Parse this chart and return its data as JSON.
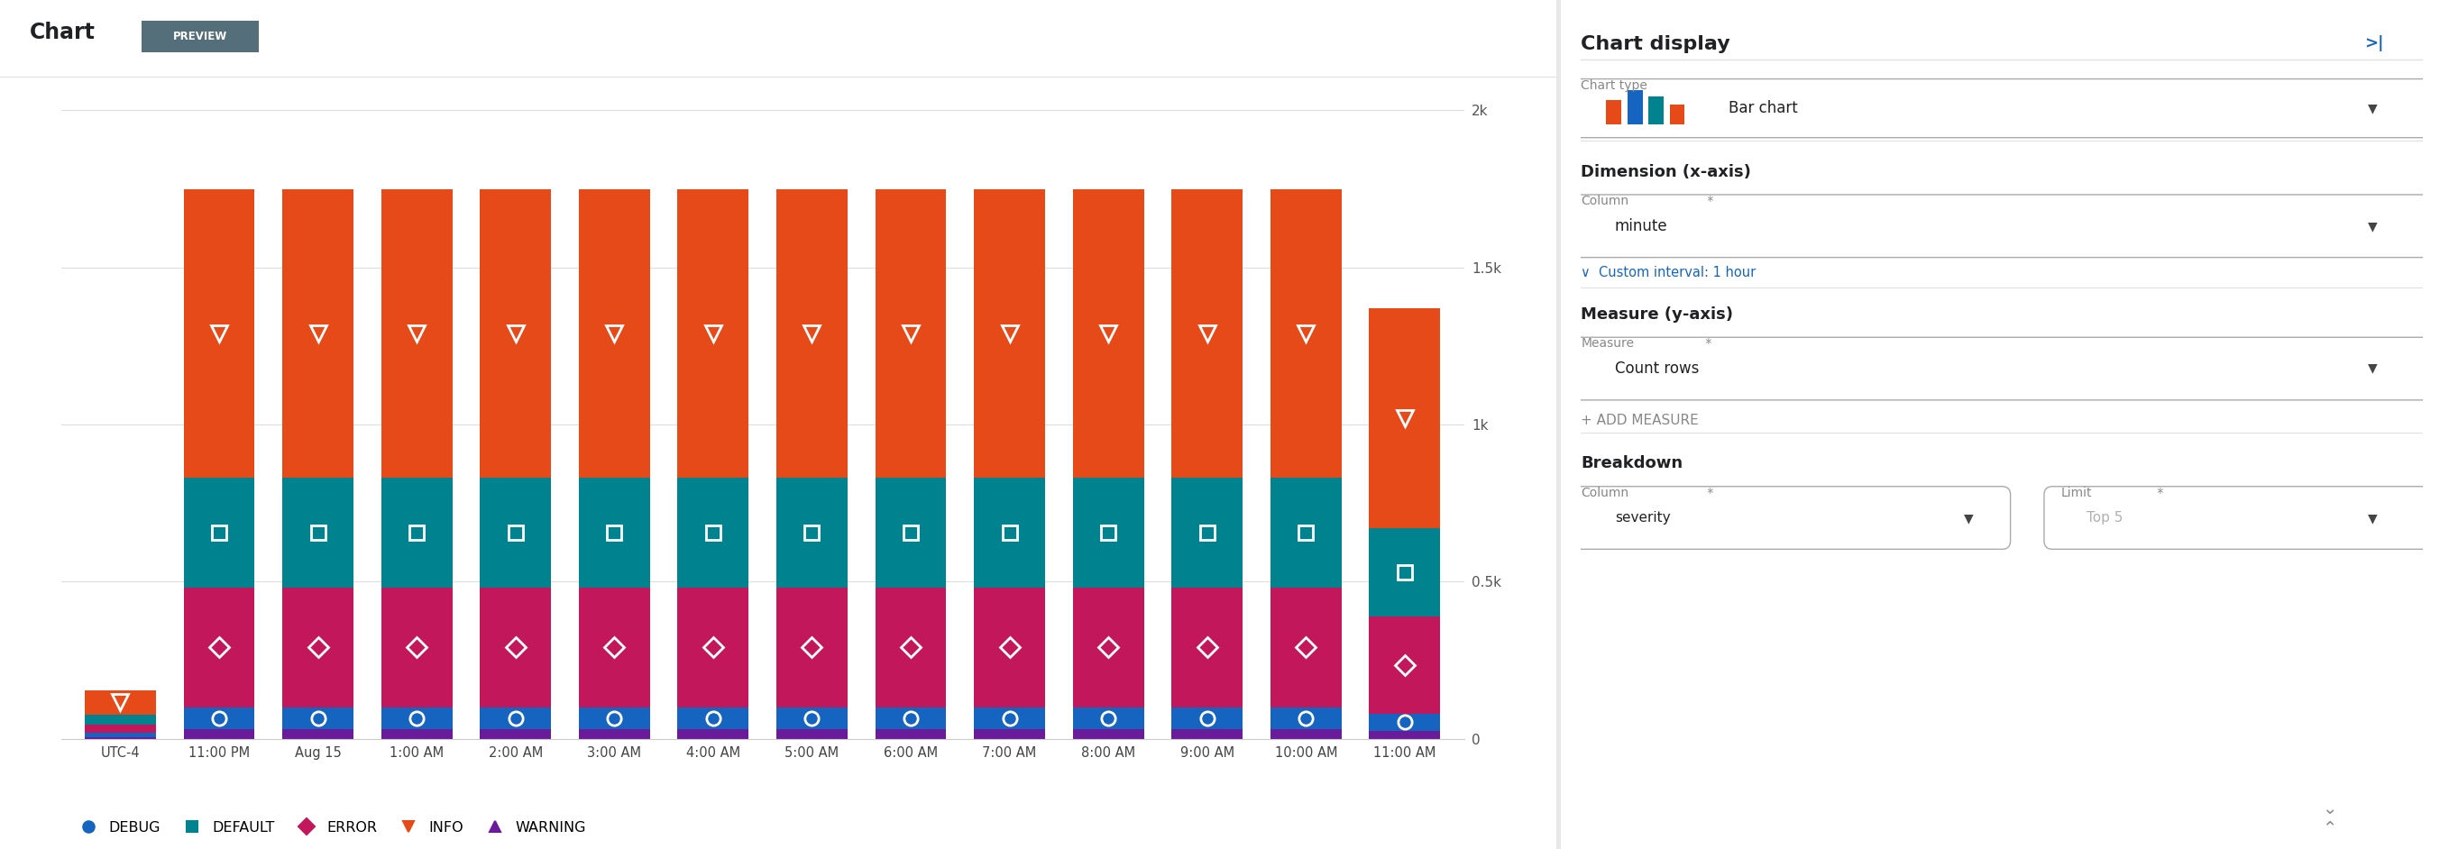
{
  "categories": [
    "UTC-4",
    "11:00 PM",
    "Aug 15",
    "1:00 AM",
    "2:00 AM",
    "3:00 AM",
    "4:00 AM",
    "5:00 AM",
    "6:00 AM",
    "7:00 AM",
    "8:00 AM",
    "9:00 AM",
    "10:00 AM",
    "11:00 AM"
  ],
  "series": {
    "WARNING": [
      5,
      30,
      30,
      30,
      30,
      30,
      30,
      30,
      30,
      30,
      30,
      30,
      30,
      25
    ],
    "DEBUG": [
      15,
      70,
      70,
      70,
      70,
      70,
      70,
      70,
      70,
      70,
      70,
      70,
      70,
      55
    ],
    "ERROR": [
      25,
      380,
      380,
      380,
      380,
      380,
      380,
      380,
      380,
      380,
      380,
      380,
      380,
      310
    ],
    "DEFAULT": [
      30,
      350,
      350,
      350,
      350,
      350,
      350,
      350,
      350,
      350,
      350,
      350,
      350,
      280
    ],
    "INFO": [
      80,
      920,
      920,
      920,
      920,
      920,
      920,
      920,
      920,
      920,
      920,
      920,
      920,
      700
    ]
  },
  "series_order": [
    "WARNING",
    "DEBUG",
    "ERROR",
    "DEFAULT",
    "INFO"
  ],
  "legend_order": [
    "DEBUG",
    "DEFAULT",
    "ERROR",
    "INFO",
    "WARNING"
  ],
  "colors": {
    "DEBUG": "#1565C0",
    "DEFAULT": "#00838F",
    "ERROR": "#C2185B",
    "INFO": "#E64A19",
    "WARNING": "#6A1B9A"
  },
  "markers": {
    "DEBUG": "o",
    "DEFAULT": "s",
    "ERROR": "D",
    "INFO": "v",
    "WARNING": "^"
  },
  "ylim": [
    0,
    2000
  ],
  "yticks": [
    0,
    500,
    1000,
    1500,
    2000
  ],
  "ytick_labels": [
    "0",
    "0.5k",
    "1k",
    "1.5k",
    "2k"
  ],
  "background_color": "#ffffff",
  "grid_color": "#dddddd",
  "bar_width": 0.72,
  "figure_width": 27.06,
  "figure_height": 9.42
}
